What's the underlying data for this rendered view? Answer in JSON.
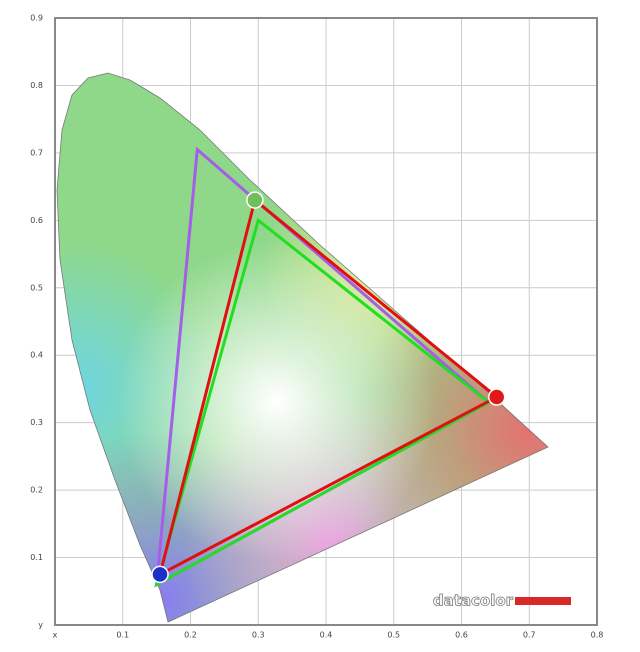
{
  "chart_data": {
    "type": "gamut",
    "xlim": [
      0,
      0.8
    ],
    "ylim": [
      0,
      0.9
    ],
    "xticks": [
      {
        "value": 0,
        "label": "x"
      },
      0.1,
      0.2,
      0.3,
      0.4,
      0.5,
      0.6,
      0.7,
      0.8
    ],
    "yticks": [
      {
        "value": 0,
        "label": "y"
      },
      0.1,
      0.2,
      0.3,
      0.4,
      0.5,
      0.6,
      0.7,
      0.8,
      0.9
    ],
    "grid": true,
    "series": [
      {
        "color": "#a45ee8",
        "x": [
          0.21,
          0.64,
          0.15
        ],
        "y": [
          0.705,
          0.33,
          0.06
        ]
      },
      {
        "color": "#22dd22",
        "x": [
          0.3,
          0.64,
          0.15
        ],
        "y": [
          0.6,
          0.33,
          0.06
        ]
      },
      {
        "color": "#e01010",
        "x": [
          0.295,
          0.652,
          0.155
        ],
        "y": [
          0.63,
          0.338,
          0.075
        ]
      }
    ],
    "markers": {
      "x": [
        0.295,
        0.652,
        0.155
      ],
      "y": [
        0.63,
        0.338,
        0.075
      ],
      "colors": [
        "#6fbf5a",
        "#e01818",
        "#1a30c8"
      ]
    },
    "watermark": "datacolor"
  }
}
